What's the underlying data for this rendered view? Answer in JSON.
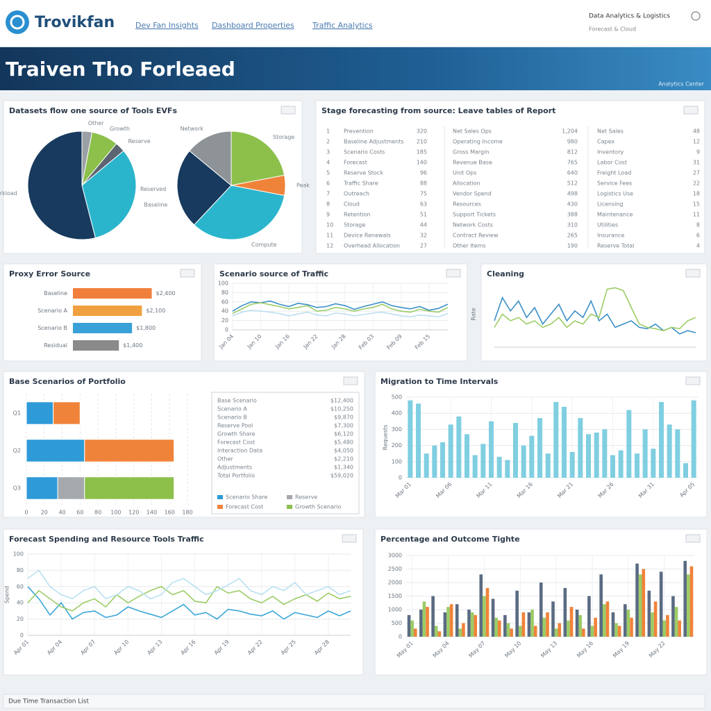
{
  "header": {
    "logo": "Trovikfan",
    "nav": [
      "Dev Fan Insights",
      "Dashboard Properties",
      "Traffic Analytics"
    ],
    "account": "Data Analytics & Logistics",
    "account_sub": "Forecast & Cloud",
    "banner_title": "Traiven Tho Forleaed",
    "banner_note": "Analytics Center"
  },
  "table": {
    "title": "Stage forecasting from source: Leave tables of Report",
    "rows": [
      [
        "1",
        "Prevention",
        "320",
        "Net Sales Ops",
        "1,204",
        "Net Sales",
        "48"
      ],
      [
        "2",
        "Baseline Adjustments",
        "210",
        "Operating Income",
        "980",
        "Capex",
        "12"
      ],
      [
        "3",
        "Scenario Costs",
        "185",
        "Gross Margin",
        "812",
        "Inventory",
        "9"
      ],
      [
        "4",
        "Forecast",
        "140",
        "Revenue Base",
        "765",
        "Labor Cost",
        "31"
      ],
      [
        "5",
        "Reserve Stock",
        "96",
        "Unit Ops",
        "640",
        "Freight Load",
        "27"
      ],
      [
        "6",
        "Traffic Share",
        "88",
        "Allocation",
        "512",
        "Service Fees",
        "22"
      ],
      [
        "7",
        "Outreach",
        "75",
        "Vendor Spend",
        "498",
        "Logistics Use",
        "18"
      ],
      [
        "8",
        "Cloud",
        "63",
        "Resources",
        "430",
        "Licensing",
        "15"
      ],
      [
        "9",
        "Retention",
        "51",
        "Support Tickets",
        "388",
        "Maintenance",
        "11"
      ],
      [
        "10",
        "Storage",
        "44",
        "Network Costs",
        "310",
        "Utilities",
        "8"
      ],
      [
        "11",
        "Device Renewals",
        "32",
        "Contract Review",
        "265",
        "Insurance",
        "6"
      ],
      [
        "12",
        "Overhead Allocation",
        "27",
        "Other Items",
        "190",
        "Reserve Total",
        "4"
      ]
    ]
  },
  "side_table": {
    "rows": [
      [
        "Base Scenario",
        "$12,400"
      ],
      [
        "Scenario A",
        "$10,250"
      ],
      [
        "Scenario B",
        "$9,870"
      ],
      [
        "Reserve Pool",
        "$7,300"
      ],
      [
        "Growth Share",
        "$6,120"
      ],
      [
        "Forecast Cost",
        "$5,480"
      ],
      [
        "Interaction Data",
        "$4,050"
      ],
      [
        "Other",
        "$2,210"
      ],
      [
        "Adjustments",
        "$1,340"
      ],
      [
        "Total Portfolio",
        "$59,020"
      ]
    ]
  },
  "footer": "Due Time Transaction List",
  "chart_data": [
    {
      "type": "pie",
      "title": "Datasets flow one source of Tools EVFs",
      "categories": [
        "Other",
        "Growth",
        "Reserve",
        "Baseline",
        "Workload"
      ],
      "values": [
        3,
        8,
        3,
        32,
        54
      ],
      "colors": [
        "#9aa0a6",
        "#8cc04b",
        "#5b6470",
        "#2bb5cc",
        "#173a5e"
      ]
    },
    {
      "type": "pie",
      "categories": [
        "Storage",
        "Peak",
        "Compute",
        "Reserved",
        "Network"
      ],
      "values": [
        22,
        6,
        34,
        24,
        14
      ],
      "colors": [
        "#8cc04b",
        "#f0833a",
        "#2bb5cc",
        "#173a5e",
        "#8e9398"
      ]
    },
    {
      "type": "hbar",
      "title": "Proxy Error Source",
      "categories": [
        "Baseline",
        "Scenario A",
        "Scenario B",
        "Residual"
      ],
      "values": [
        2400,
        2100,
        1800,
        1400
      ],
      "value_labels": [
        "$2,400",
        "$2,100",
        "$1,800",
        "$1,400"
      ],
      "colors": [
        "#f07f3c",
        "#f0a040",
        "#3aa0d8",
        "#8a8a8a"
      ],
      "xlim": [
        0,
        2600
      ]
    },
    {
      "type": "line",
      "title": "Scenario source of Traffic",
      "categories": [
        "Jan 04",
        null,
        null,
        "Jan 10",
        null,
        null,
        "Jan 16",
        null,
        null,
        "Jan 22",
        null,
        null,
        "Jan 28",
        null,
        null,
        "Feb 03",
        null,
        null,
        "Feb 09",
        null,
        null,
        "Feb 15",
        null,
        null
      ],
      "series": [
        {
          "color": "#3a8fc8",
          "values": [
            40,
            52,
            60,
            58,
            62,
            55,
            50,
            57,
            54,
            48,
            50,
            56,
            52,
            44,
            50,
            55,
            60,
            52,
            48,
            45,
            50,
            42,
            46,
            55
          ]
        },
        {
          "color": "#9ccc65",
          "values": [
            35,
            45,
            55,
            58,
            54,
            50,
            45,
            48,
            52,
            40,
            42,
            48,
            45,
            40,
            45,
            48,
            55,
            45,
            40,
            38,
            44,
            40,
            38,
            48
          ]
        },
        {
          "color": "#bcdff0",
          "values": [
            30,
            38,
            42,
            40,
            38,
            35,
            30,
            34,
            38,
            32,
            30,
            36,
            34,
            30,
            33,
            36,
            38,
            34,
            30,
            28,
            32,
            30,
            28,
            35
          ]
        }
      ],
      "ylim": [
        0,
        100
      ],
      "yticks": [
        0,
        20,
        40,
        60,
        80,
        100
      ],
      "grid": true
    },
    {
      "type": "line",
      "title": "Cleaning",
      "ylabel": "Rate",
      "series": [
        {
          "color": "#3a8fc8",
          "values": [
            40,
            75,
            55,
            70,
            45,
            60,
            35,
            50,
            65,
            40,
            55,
            45,
            70,
            40,
            50,
            30,
            35,
            40,
            30,
            28,
            35,
            25,
            30,
            20,
            25,
            22
          ]
        },
        {
          "color": "#9ccc65",
          "values": [
            30,
            50,
            40,
            45,
            35,
            40,
            30,
            35,
            45,
            30,
            40,
            35,
            50,
            45,
            88,
            90,
            86,
            60,
            35,
            30,
            28,
            25,
            30,
            28,
            40,
            45
          ]
        }
      ],
      "ylim": [
        0,
        100
      ],
      "grid": true
    },
    {
      "type": "stackh",
      "title": "Base Scenarios of Portfolio",
      "categories": [
        "Q1",
        "Q2",
        "Q3"
      ],
      "series": [
        {
          "name": "Scenario Share",
          "color": "#2e9ad8",
          "values": [
            30,
            65,
            35
          ]
        },
        {
          "name": "Reserve",
          "color": "#a5a8ac",
          "values": [
            0,
            0,
            30
          ]
        },
        {
          "name": "Forecast Cost",
          "color": "#f0833a",
          "values": [
            30,
            100,
            0
          ]
        },
        {
          "name": "Growth Scenario",
          "color": "#8cc04b",
          "values": [
            0,
            0,
            100
          ]
        }
      ],
      "xlim": [
        0,
        180
      ],
      "xticks": [
        0,
        20,
        40,
        60,
        80,
        100,
        120,
        140,
        160,
        180
      ],
      "grid": true,
      "legend": "bottom"
    },
    {
      "type": "bar",
      "title": "Migration to Time Intervals",
      "ylabel": "Requests",
      "categories": [
        "Mar 01",
        null,
        null,
        null,
        null,
        "Mar 06",
        null,
        null,
        null,
        null,
        "Mar 11",
        null,
        null,
        null,
        null,
        "Mar 16",
        null,
        null,
        null,
        null,
        "Mar 21",
        null,
        null,
        null,
        null,
        "Mar 26",
        null,
        null,
        null,
        null,
        "Mar 31",
        null,
        null,
        null,
        null,
        "Apr 05"
      ],
      "values": [
        480,
        460,
        150,
        200,
        220,
        330,
        380,
        270,
        140,
        210,
        350,
        130,
        110,
        340,
        200,
        260,
        370,
        150,
        470,
        440,
        160,
        370,
        270,
        280,
        300,
        140,
        170,
        420,
        150,
        300,
        180,
        470,
        330,
        300,
        90,
        480
      ],
      "color": "#7fcfe0",
      "ylim": [
        0,
        500
      ],
      "yticks": [
        0,
        100,
        200,
        300,
        400,
        500
      ],
      "grid": true
    },
    {
      "type": "line",
      "title": "Forecast Spending and Resource Tools Traffic",
      "ylabel": "Spend",
      "categories": [
        "Apr 01",
        null,
        null,
        "Apr 04",
        null,
        null,
        "Apr 07",
        null,
        null,
        "Apr 10",
        null,
        null,
        "Apr 13",
        null,
        null,
        "Apr 16",
        null,
        null,
        "Apr 19",
        null,
        null,
        "Apr 22",
        null,
        null,
        "Apr 25",
        null,
        null,
        "Apr 28",
        null,
        null
      ],
      "series": [
        {
          "color": "#3aa6d8",
          "values": [
            60,
            45,
            25,
            40,
            20,
            28,
            30,
            22,
            25,
            35,
            30,
            26,
            22,
            30,
            38,
            25,
            28,
            20,
            32,
            30,
            26,
            24,
            30,
            20,
            28,
            25,
            22,
            30,
            24,
            30
          ]
        },
        {
          "color": "#9ccc65",
          "values": [
            40,
            55,
            45,
            35,
            30,
            40,
            45,
            35,
            50,
            40,
            48,
            55,
            60,
            50,
            55,
            42,
            40,
            60,
            52,
            55,
            45,
            40,
            48,
            38,
            45,
            50,
            42,
            52,
            45,
            48
          ]
        },
        {
          "color": "#b9e0f2",
          "values": [
            70,
            80,
            60,
            50,
            45,
            55,
            60,
            45,
            50,
            60,
            55,
            45,
            50,
            65,
            70,
            60,
            50,
            55,
            62,
            70,
            55,
            50,
            60,
            55,
            65,
            50,
            55,
            60,
            50,
            55
          ]
        }
      ],
      "ylim": [
        0,
        100
      ],
      "yticks": [
        0,
        20,
        40,
        60,
        80,
        100
      ],
      "grid": true
    },
    {
      "type": "groupbar",
      "title": "Percentage and Outcome Tighte",
      "categories": [
        "May 01",
        null,
        null,
        "May 04",
        null,
        null,
        "May 07",
        null,
        null,
        "May 10",
        null,
        null,
        "May 13",
        null,
        null,
        "May 16",
        null,
        null,
        "May 19",
        null,
        null,
        "May 22",
        null,
        null
      ],
      "series": [
        {
          "color": "#5a6b82",
          "values": [
            800,
            1000,
            1500,
            900,
            1200,
            1000,
            2300,
            1400,
            800,
            1700,
            900,
            2000,
            1300,
            1800,
            1000,
            1500,
            2300,
            900,
            1200,
            2700,
            1700,
            2400,
            1500,
            2800
          ]
        },
        {
          "color": "#9ccc65",
          "values": [
            600,
            1300,
            400,
            1100,
            300,
            900,
            1500,
            700,
            500,
            400,
            1000,
            700,
            300,
            600,
            800,
            400,
            1200,
            500,
            1000,
            2300,
            900,
            600,
            1100,
            2300
          ]
        },
        {
          "color": "#f0833a",
          "values": [
            300,
            1100,
            200,
            1200,
            500,
            800,
            1800,
            600,
            300,
            900,
            400,
            900,
            500,
            1100,
            300,
            700,
            1300,
            400,
            700,
            2500,
            1300,
            800,
            600,
            2600
          ]
        }
      ],
      "ylim": [
        0,
        3000
      ],
      "yticks": [
        0,
        500,
        1000,
        1500,
        2000,
        2500,
        3000
      ],
      "grid": true
    }
  ]
}
